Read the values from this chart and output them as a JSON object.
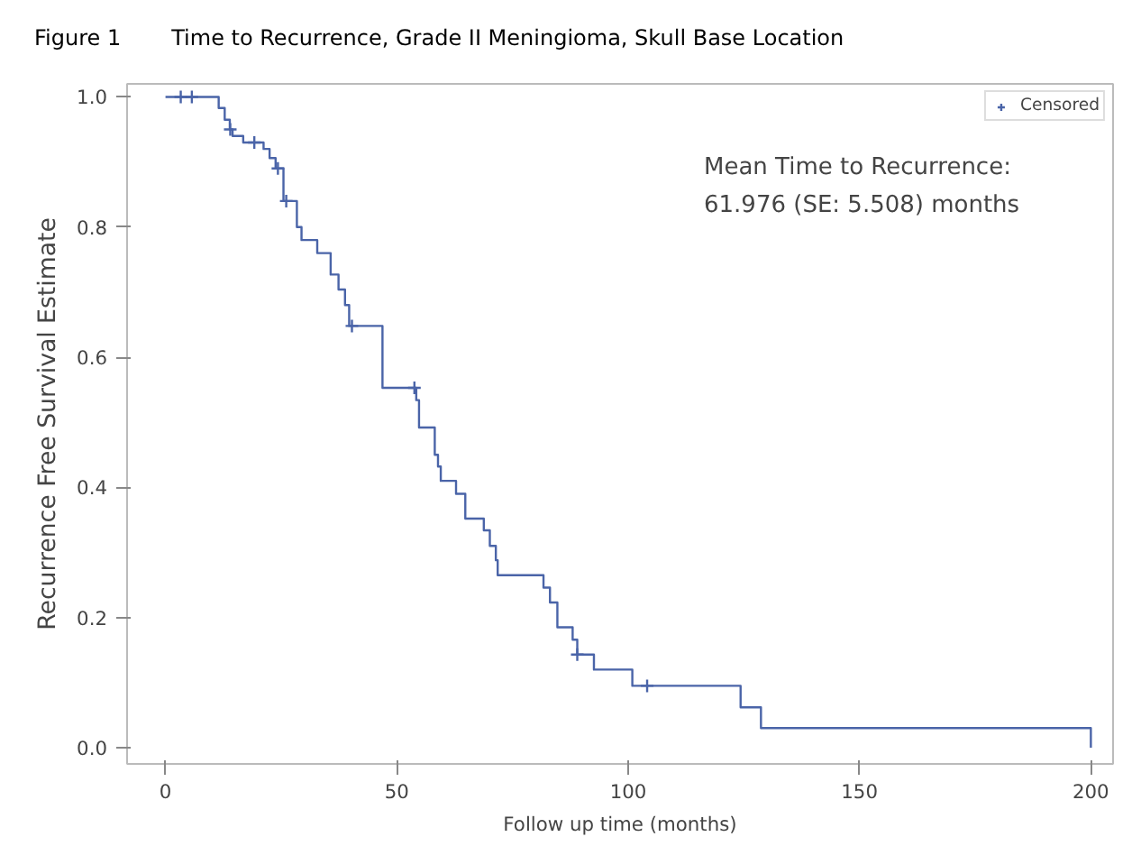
{
  "chart_data": {
    "type": "step",
    "title": "Time to Recurrence, Grade II Meningioma, Skull Base Location",
    "xlabel": "Follow up time (months)",
    "ylabel": "Recurrence Free Survival Estimate",
    "annotations": [
      "Figure 1",
      "Mean Time to Recurrence:\n61.976 (SE: 5.508) months"
    ],
    "series": [
      {
        "color": "#4a64a8",
        "marker": "none",
        "x": [
          0,
          11.5,
          12.8,
          13.9,
          14.5,
          16.8,
          21.2,
          22.5,
          23.8,
          25.5,
          28.4,
          29.4,
          32.8,
          35.7,
          37.4,
          38.8,
          39.7,
          46.9,
          54.2,
          54.8,
          58.2,
          58.9,
          59.5,
          62.8,
          64.8,
          68.8,
          70.1,
          71.4,
          71.8,
          81.7,
          83.1,
          84.7,
          88.0,
          89.0,
          92.6,
          100.9,
          124.3,
          128.7,
          200
        ],
        "values": [
          1.0,
          0.983,
          0.965,
          0.95,
          0.94,
          0.93,
          0.92,
          0.906,
          0.89,
          0.84,
          0.8,
          0.78,
          0.76,
          0.727,
          0.704,
          0.68,
          0.648,
          0.553,
          0.534,
          0.492,
          0.45,
          0.432,
          0.41,
          0.39,
          0.352,
          0.334,
          0.31,
          0.288,
          0.265,
          0.246,
          0.223,
          0.185,
          0.166,
          0.143,
          0.12,
          0.095,
          0.062,
          0.03,
          0.0
        ]
      },
      {
        "type": "scatter",
        "name": "Censored",
        "color": "#4a64a8",
        "marker": "cross",
        "x": [
          3.3,
          5.7,
          14.0,
          19.2,
          24.3,
          26.1,
          40.3,
          53.8,
          89.0,
          104.1
        ],
        "values": [
          1.0,
          1.0,
          0.95,
          0.93,
          0.89,
          0.84,
          0.648,
          0.553,
          0.143,
          0.095
        ]
      }
    ],
    "xlim": [
      -8.3,
      204.8
    ],
    "ylim": [
      -0.025,
      1.02
    ],
    "xticks": [
      0,
      50,
      100,
      150,
      200
    ],
    "yticks": [
      {
        "value": 0,
        "label": "0.0"
      },
      0.2,
      0.4,
      0.6,
      0.8,
      {
        "value": 1,
        "label": "1.0"
      }
    ],
    "grid": false,
    "legend": "top right"
  }
}
